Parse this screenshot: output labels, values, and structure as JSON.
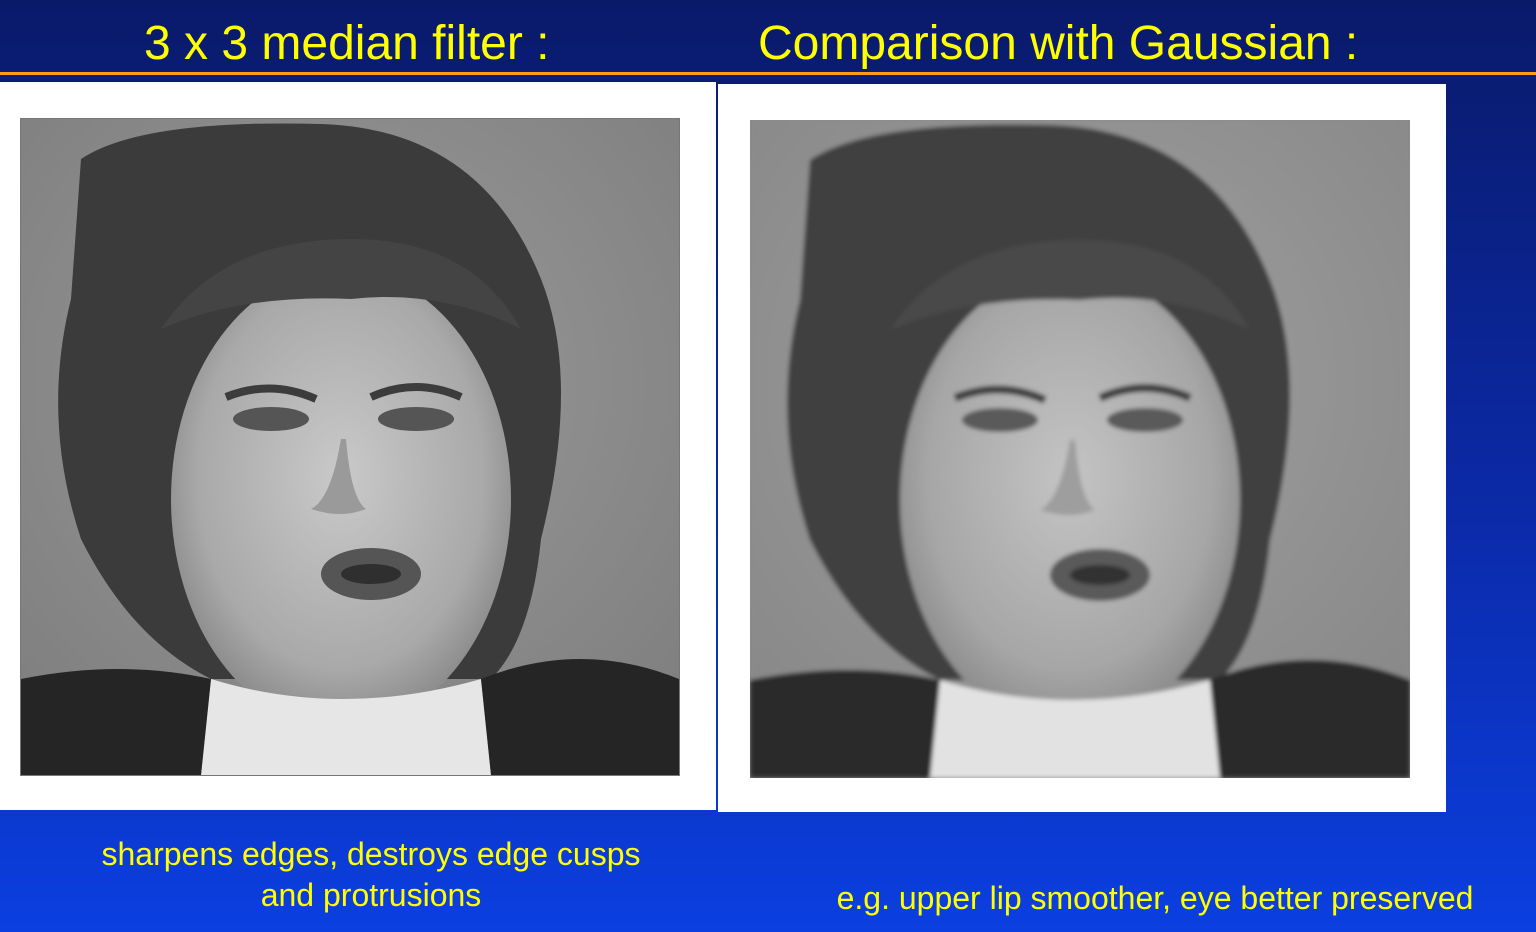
{
  "slide": {
    "title_left": "3 x 3 median filter :",
    "title_right": "Comparison with Gaussian :",
    "caption_left_line1": "sharpens edges, destroys edge cusps",
    "caption_left_line2": "and protrusions",
    "caption_right": "e.g. upper lip smoother, eye better preserved"
  },
  "images": {
    "left": {
      "content": "grayscale portrait photograph"
    },
    "right": {
      "content": "grayscale portrait photograph"
    }
  },
  "colors": {
    "background_top": "#0a1a6a",
    "background_bottom": "#0b3fe0",
    "title_text": "#ffff00",
    "rule": "#ff9a1a",
    "panel": "#ffffff"
  }
}
